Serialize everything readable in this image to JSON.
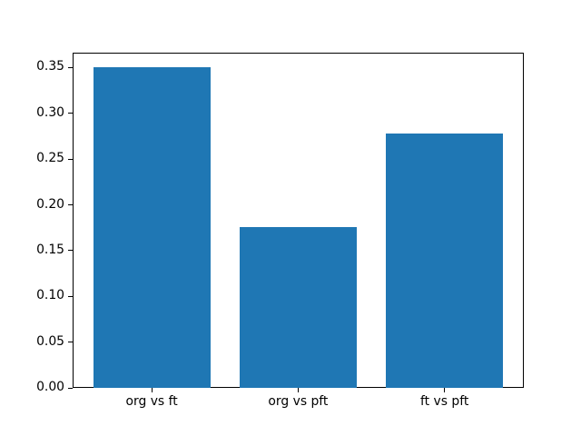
{
  "figure": {
    "background_color": "#ffffff",
    "axes_border_color": "#000000",
    "text_color": "#000000"
  },
  "chart_data": {
    "type": "bar",
    "title": "",
    "xlabel": "",
    "ylabel": "",
    "categories": [
      "org vs ft",
      "org vs pft",
      "ft vs pft"
    ],
    "values": [
      0.35,
      0.176,
      0.278
    ],
    "bar_color": "#1f77b4",
    "bar_width_fraction": 0.8,
    "ylim": [
      0,
      0.3665
    ],
    "yticks": [
      0.0,
      0.05,
      0.1,
      0.15,
      0.2,
      0.25,
      0.3,
      0.35
    ],
    "ytick_labels": [
      "0.00",
      "0.05",
      "0.10",
      "0.15",
      "0.20",
      "0.25",
      "0.30",
      "0.35"
    ],
    "grid": "off",
    "legend": "none"
  }
}
